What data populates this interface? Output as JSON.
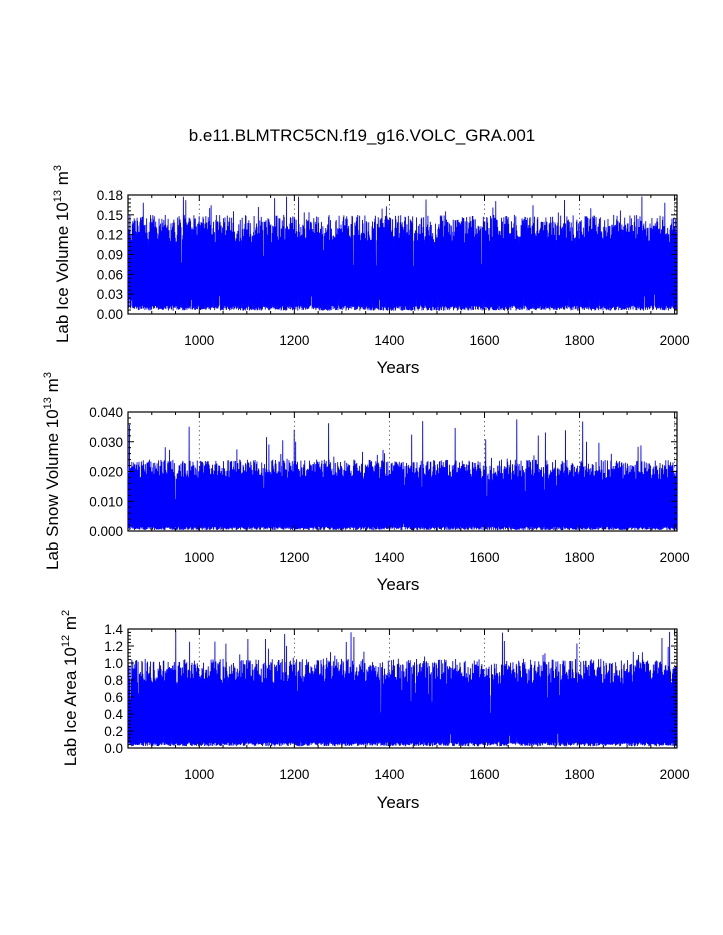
{
  "figure_title": "b.e11.BLMTRC5CN.f19_g16.VOLC_GRA.001",
  "colors": {
    "series": "#0000ff",
    "axis": "#000000",
    "grid": "#555555",
    "background": "#ffffff"
  },
  "chart_data": [
    {
      "type": "line",
      "ylabel_main": "Lab Ice Volume 10",
      "ylabel_exp": "13",
      "ylabel_unit": "m",
      "ylabel_unit_exp": "3",
      "xlabel": "Years",
      "xlim": [
        850,
        2005
      ],
      "ylim": [
        0.0,
        0.18
      ],
      "xticks": [
        1000,
        1200,
        1400,
        1600,
        1800,
        2000
      ],
      "xtick_labels": [
        "1000",
        "1200",
        "1400",
        "1600",
        "1800",
        "2000"
      ],
      "yticks": [
        0.0,
        0.03,
        0.06,
        0.09,
        0.12,
        0.15,
        0.18
      ],
      "ytick_labels": [
        "0.00",
        "0.03",
        "0.06",
        "0.09",
        "0.12",
        "0.15",
        "0.18"
      ],
      "grid": "vertical dotted at major x ticks",
      "series": [
        {
          "color": "#0000ff",
          "x_start": 850,
          "x_end": 2005,
          "typical_min": 0.01,
          "typical_max": 0.15,
          "peak_max": 0.178,
          "floor": 0.005,
          "notes": "monthly time series, dense band roughly 0.01–0.15 with spikes to ~0.17"
        }
      ]
    },
    {
      "type": "line",
      "ylabel_main": "Lab Snow Volume 10",
      "ylabel_exp": "13",
      "ylabel_unit": "m",
      "ylabel_unit_exp": "3",
      "xlabel": "Years",
      "xlim": [
        850,
        2005
      ],
      "ylim": [
        0.0,
        0.04
      ],
      "xticks": [
        1000,
        1200,
        1400,
        1600,
        1800,
        2000
      ],
      "xtick_labels": [
        "1000",
        "1200",
        "1400",
        "1600",
        "1800",
        "2000"
      ],
      "yticks": [
        0.0,
        0.01,
        0.02,
        0.03,
        0.04
      ],
      "ytick_labels": [
        "0.000",
        "0.010",
        "0.020",
        "0.030",
        "0.040"
      ],
      "grid": "vertical dotted at major x ticks",
      "series": [
        {
          "color": "#0000ff",
          "x_start": 850,
          "x_end": 2005,
          "typical_min": 0.001,
          "typical_max": 0.024,
          "peak_max": 0.038,
          "floor": 0.0003,
          "notes": "dense band roughly 0.001–0.025 with spikes to ~0.035–0.038"
        }
      ]
    },
    {
      "type": "line",
      "ylabel_main": "Lab Ice Area 10",
      "ylabel_exp": "12",
      "ylabel_unit": "m",
      "ylabel_unit_exp": "2",
      "xlabel": "Years",
      "xlim": [
        850,
        2005
      ],
      "ylim": [
        0.0,
        1.4
      ],
      "xticks": [
        1000,
        1200,
        1400,
        1600,
        1800,
        2000
      ],
      "xtick_labels": [
        "1000",
        "1200",
        "1400",
        "1600",
        "1800",
        "2000"
      ],
      "yticks": [
        0.0,
        0.2,
        0.4,
        0.6,
        0.8,
        1.0,
        1.2,
        1.4
      ],
      "ytick_labels": [
        "0.0",
        "0.2",
        "0.4",
        "0.6",
        "0.8",
        "1.0",
        "1.2",
        "1.4"
      ],
      "grid": "vertical dotted at major x ticks",
      "series": [
        {
          "color": "#0000ff",
          "x_start": 850,
          "x_end": 2005,
          "typical_min": 0.05,
          "typical_max": 1.05,
          "peak_max": 1.38,
          "floor": 0.02,
          "notes": "dense band roughly 0.05–1.1 with spikes to ~1.25, one near 1.38 around year 1535"
        }
      ]
    }
  ]
}
